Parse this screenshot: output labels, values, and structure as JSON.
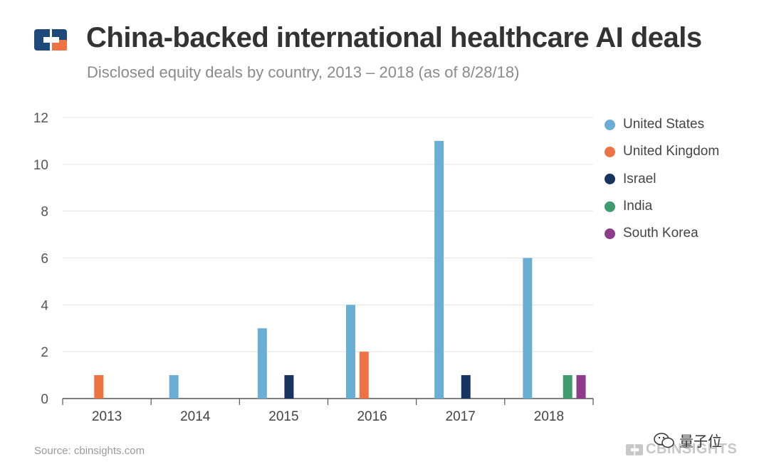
{
  "header": {
    "title": "China-backed international healthcare AI deals",
    "subtitle": "Disclosed equity deals by country, 2013  – 2018  (as of 8/28/18)"
  },
  "chart_data": {
    "type": "bar",
    "title": "China-backed international healthcare AI deals",
    "subtitle": "Disclosed equity deals by country, 2013  – 2018  (as of 8/28/18)",
    "categories": [
      "2013",
      "2014",
      "2015",
      "2016",
      "2017",
      "2018"
    ],
    "series": [
      {
        "name": "United States",
        "color": "#6aaed3",
        "values": [
          0,
          1,
          3,
          4,
          11,
          6
        ]
      },
      {
        "name": "United Kingdom",
        "color": "#ee7344",
        "values": [
          1,
          0,
          0,
          2,
          0,
          0
        ]
      },
      {
        "name": "Israel",
        "color": "#16345f",
        "values": [
          0,
          0,
          1,
          0,
          1,
          0
        ]
      },
      {
        "name": "India",
        "color": "#3e9c6e",
        "values": [
          0,
          0,
          0,
          0,
          0,
          1
        ]
      },
      {
        "name": "South Korea",
        "color": "#8e3b8a",
        "values": [
          0,
          0,
          0,
          0,
          0,
          1
        ]
      }
    ],
    "yticks": [
      "0",
      "2",
      "4",
      "6",
      "8",
      "10",
      "12"
    ],
    "ylim": [
      0,
      12
    ],
    "xlabel": "",
    "ylabel": "",
    "grid": true,
    "legend_position": "right"
  },
  "footer": {
    "source": "Source: cbinsights.com",
    "brand": "CBINSIGHTS",
    "watermark": "量子位"
  },
  "colors": {
    "logo_blue": "#1d4a7a",
    "logo_orange": "#ee7344",
    "grid": "#e3e3e3",
    "axis": "#555555"
  }
}
